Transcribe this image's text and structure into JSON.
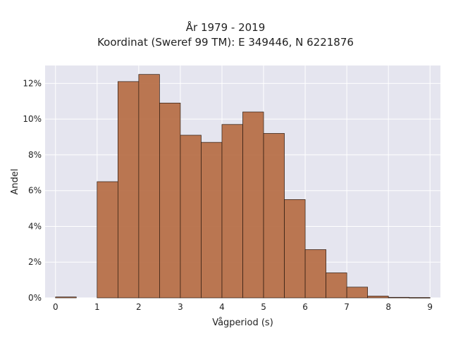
{
  "chart_data": {
    "type": "bar",
    "title_lines": [
      "År 1979 - 2019",
      "Koordinat (Sweref 99 TM): E 349446, N 6221876"
    ],
    "xlabel": "Vågperiod (s)",
    "ylabel": "Andel",
    "x_ticks": [
      "0",
      "1",
      "2",
      "3",
      "4",
      "5",
      "6",
      "7",
      "8",
      "9"
    ],
    "y_ticks": [
      "0%",
      "2%",
      "4%",
      "6%",
      "8%",
      "10%",
      "12%"
    ],
    "xlim": [
      -0.25,
      9.25
    ],
    "ylim": [
      0,
      13
    ],
    "bin_width": 0.5,
    "bins": [
      {
        "start": 0.0,
        "value": 0.05
      },
      {
        "start": 0.5,
        "value": 0
      },
      {
        "start": 1.0,
        "value": 6.5
      },
      {
        "start": 1.5,
        "value": 12.1
      },
      {
        "start": 2.0,
        "value": 12.5
      },
      {
        "start": 2.5,
        "value": 10.9
      },
      {
        "start": 3.0,
        "value": 9.1
      },
      {
        "start": 3.5,
        "value": 8.7
      },
      {
        "start": 4.0,
        "value": 9.7
      },
      {
        "start": 4.5,
        "value": 10.4
      },
      {
        "start": 5.0,
        "value": 9.2
      },
      {
        "start": 5.5,
        "value": 5.5
      },
      {
        "start": 6.0,
        "value": 2.7
      },
      {
        "start": 6.5,
        "value": 1.4
      },
      {
        "start": 7.0,
        "value": 0.6
      },
      {
        "start": 7.5,
        "value": 0.1
      },
      {
        "start": 8.0,
        "value": 0.03
      },
      {
        "start": 8.5,
        "value": 0.02
      }
    ],
    "grid": true,
    "colors": {
      "bar_fill": "#b5693f",
      "bar_stroke": "#2b1a10",
      "plot_bg": "#e5e5ef",
      "grid": "#ffffff"
    }
  }
}
